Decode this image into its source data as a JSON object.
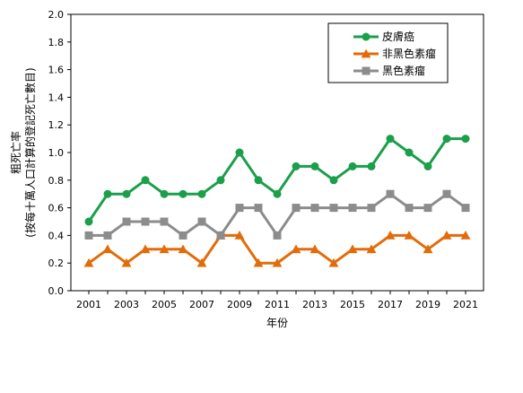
{
  "chart_data": {
    "type": "line",
    "title": "",
    "xlabel": "年份",
    "ylabel_line1": "粗死亡率",
    "ylabel_line2": "(按每十萬人口計算的登記死亡數目)",
    "ylim": [
      0,
      2.0
    ],
    "yticks": [
      "0.0",
      "0.2",
      "0.4",
      "0.6",
      "0.8",
      "1.0",
      "1.2",
      "1.4",
      "1.6",
      "1.8",
      "2.0"
    ],
    "x": [
      2001,
      2002,
      2003,
      2004,
      2005,
      2006,
      2007,
      2008,
      2009,
      2010,
      2011,
      2012,
      2013,
      2014,
      2015,
      2016,
      2017,
      2018,
      2019,
      2020,
      2021
    ],
    "xticks": [
      "2001",
      "2003",
      "2005",
      "2007",
      "2009",
      "2011",
      "2013",
      "2015",
      "2017",
      "2019",
      "2021"
    ],
    "grid": false,
    "legend_position": "top-right",
    "series": [
      {
        "name": "皮膚癌",
        "color": "#1a9f4a",
        "marker": "circle",
        "values": [
          0.5,
          0.7,
          0.7,
          0.8,
          0.7,
          0.7,
          0.7,
          0.8,
          1.0,
          0.8,
          0.7,
          0.9,
          0.9,
          0.8,
          0.9,
          0.9,
          1.1,
          1.0,
          0.9,
          1.1,
          1.1
        ]
      },
      {
        "name": "非黑色素瘤",
        "color": "#e36c0a",
        "marker": "triangle",
        "values": [
          0.2,
          0.3,
          0.2,
          0.3,
          0.3,
          0.3,
          0.2,
          0.4,
          0.4,
          0.2,
          0.2,
          0.3,
          0.3,
          0.2,
          0.3,
          0.3,
          0.4,
          0.4,
          0.3,
          0.4,
          0.4
        ]
      },
      {
        "name": "黑色素瘤",
        "color": "#8c8c8c",
        "marker": "square",
        "values": [
          0.4,
          0.4,
          0.5,
          0.5,
          0.5,
          0.4,
          0.5,
          0.4,
          0.6,
          0.6,
          0.4,
          0.6,
          0.6,
          0.6,
          0.6,
          0.6,
          0.7,
          0.6,
          0.6,
          0.7,
          0.6
        ]
      }
    ]
  }
}
